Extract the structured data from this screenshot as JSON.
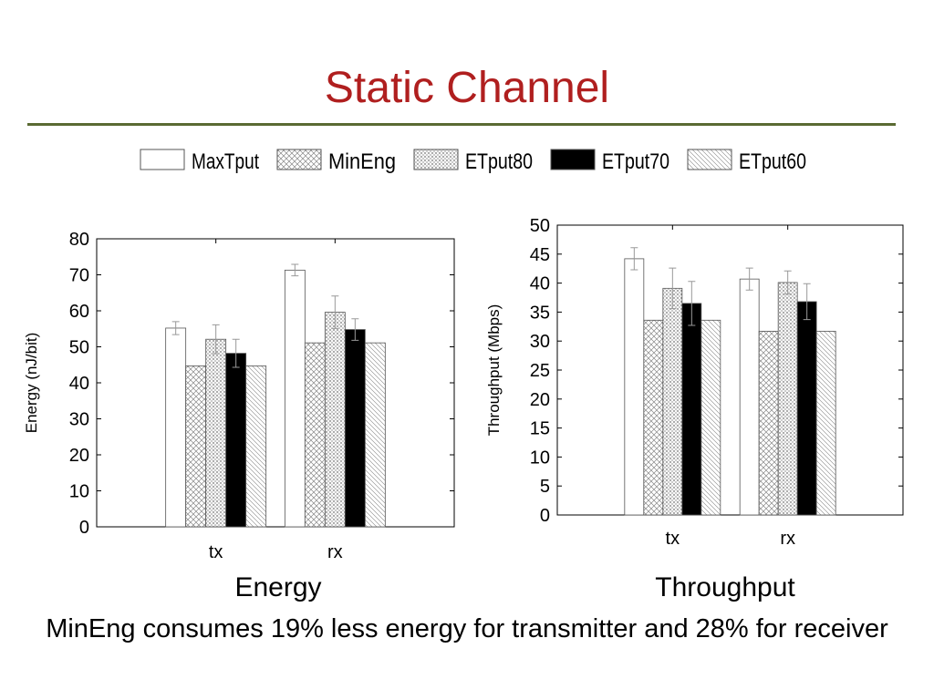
{
  "slide": {
    "title": "Static Channel",
    "captions": [
      "Energy",
      "Throughput"
    ],
    "summary": "MinEng consumes 19% less energy for transmitter and 28% for receiver"
  },
  "legend": [
    {
      "name": "MaxTput",
      "pattern": "plain"
    },
    {
      "name": "MinEng",
      "pattern": "crosshatch"
    },
    {
      "name": "ETput80",
      "pattern": "dots"
    },
    {
      "name": "ETput70",
      "pattern": "solid-black"
    },
    {
      "name": "ETput60",
      "pattern": "diagonal"
    }
  ],
  "colors": {
    "title": "#b01f1f",
    "rule": "#5a6a32",
    "bar_edge": "#555555",
    "solid": "#000000"
  },
  "chart_data": [
    {
      "type": "bar",
      "title": "",
      "xlabel": "",
      "ylabel": "Energy (nJ/bit)",
      "categories": [
        "tx",
        "rx"
      ],
      "ylim": [
        0,
        80
      ],
      "yticks": [
        0,
        10,
        20,
        30,
        40,
        50,
        60,
        70,
        80
      ],
      "grid": false,
      "series": [
        {
          "name": "MaxTput",
          "values": [
            55.2,
            71.3
          ],
          "errors": [
            1.8,
            1.6
          ]
        },
        {
          "name": "MinEng",
          "values": [
            44.7,
            51.1
          ],
          "errors": [
            0,
            0
          ]
        },
        {
          "name": "ETput80",
          "values": [
            52.1,
            59.6
          ],
          "errors": [
            4.0,
            4.5
          ]
        },
        {
          "name": "ETput70",
          "values": [
            48.2,
            54.8
          ],
          "errors": [
            3.9,
            3.0
          ]
        },
        {
          "name": "ETput60",
          "values": [
            44.7,
            51.1
          ],
          "errors": [
            0,
            0
          ]
        }
      ]
    },
    {
      "type": "bar",
      "title": "",
      "xlabel": "",
      "ylabel": "Throughput (Mbps)",
      "categories": [
        "tx",
        "rx"
      ],
      "ylim": [
        0,
        50
      ],
      "yticks": [
        0,
        5,
        10,
        15,
        20,
        25,
        30,
        35,
        40,
        45,
        50
      ],
      "grid": false,
      "series": [
        {
          "name": "MaxTput",
          "values": [
            44.2,
            40.7
          ],
          "errors": [
            1.9,
            1.9
          ]
        },
        {
          "name": "MinEng",
          "values": [
            33.6,
            31.7
          ],
          "errors": [
            0,
            0
          ]
        },
        {
          "name": "ETput80",
          "values": [
            39.1,
            40.1
          ],
          "errors": [
            3.5,
            2.0
          ]
        },
        {
          "name": "ETput70",
          "values": [
            36.5,
            36.8
          ],
          "errors": [
            3.8,
            3.1
          ]
        },
        {
          "name": "ETput60",
          "values": [
            33.6,
            31.7
          ],
          "errors": [
            0,
            0
          ]
        }
      ]
    }
  ]
}
